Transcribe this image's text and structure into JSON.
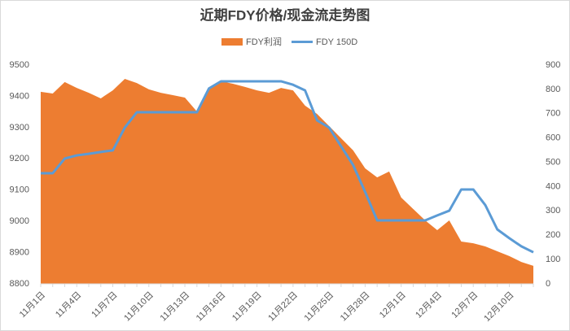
{
  "chart_data": {
    "type": "area_line",
    "title": "近期FDY价格/现金流走势图",
    "categories": [
      "11月1日",
      null,
      null,
      "11月4日",
      null,
      null,
      "11月7日",
      null,
      null,
      "11月10日",
      null,
      null,
      "11月13日",
      null,
      null,
      "11月16日",
      null,
      null,
      "11月19日",
      null,
      null,
      "11月22日",
      null,
      null,
      "11月25日",
      null,
      null,
      "11月28日",
      null,
      null,
      "12月1日",
      null,
      null,
      "12月4日",
      null,
      null,
      "12月7日",
      null,
      null,
      "12月10日",
      null,
      null
    ],
    "series": [
      {
        "name": "FDY利润",
        "kind": "area",
        "axis": "y2",
        "color": "#ed7d31",
        "values": [
          790,
          783,
          830,
          806,
          786,
          763,
          796,
          843,
          826,
          800,
          786,
          776,
          766,
          709,
          800,
          833,
          823,
          810,
          796,
          786,
          806,
          796,
          733,
          699,
          649,
          599,
          549,
          475,
          438,
          462,
          355,
          308,
          261,
          221,
          261,
          174,
          167,
          154,
          134,
          114,
          90,
          74
        ]
      },
      {
        "name": "FDY 150D",
        "kind": "line",
        "axis": "y",
        "color": "#5b9bd5",
        "values": [
          9154,
          9154,
          9201,
          9211,
          9216,
          9222,
          9227,
          9300,
          9349,
          9349,
          9349,
          9349,
          9349,
          9349,
          9425,
          9448,
          9448,
          9448,
          9448,
          9448,
          9448,
          9437,
          9419,
          9323,
          9300,
          9240,
          9180,
          9094,
          9003,
          9003,
          9003,
          9003,
          9003,
          9019,
          9034,
          9102,
          9102,
          9052,
          8974,
          8946,
          8920,
          8901
        ]
      }
    ],
    "ylim": [
      8800,
      9500
    ],
    "yticks": [
      8800,
      8900,
      9000,
      9100,
      9200,
      9300,
      9400,
      9500
    ],
    "y2lim": [
      0,
      900
    ],
    "y2ticks": [
      0,
      100,
      200,
      300,
      400,
      500,
      600,
      700,
      800,
      900
    ],
    "legend": "top",
    "grid": false
  }
}
